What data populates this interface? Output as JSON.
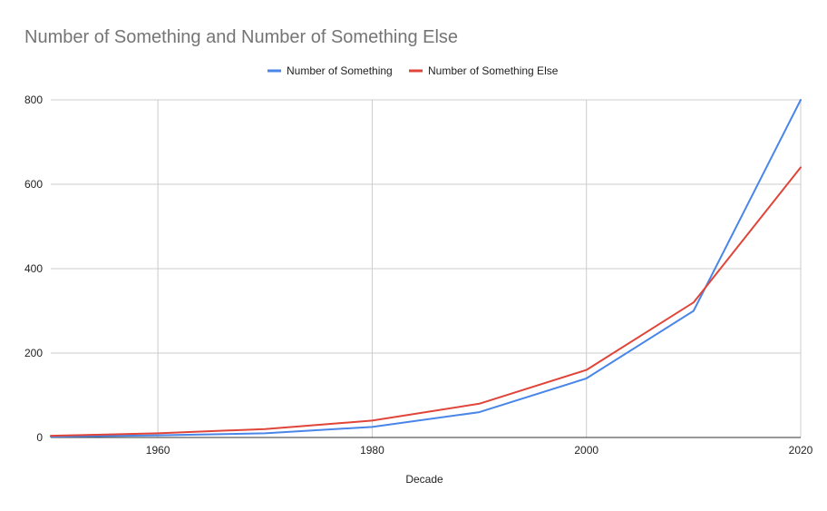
{
  "chart_data": {
    "type": "line",
    "title": "Number of Something and Number of Something Else",
    "xlabel": "Decade",
    "ylabel": "",
    "x": [
      1950,
      1960,
      1970,
      1980,
      1990,
      2000,
      2010,
      2020
    ],
    "series": [
      {
        "name": "Number of Something",
        "color": "#4a86e8",
        "values": [
          2,
          5,
          10,
          25,
          60,
          140,
          300,
          800
        ]
      },
      {
        "name": "Number of Something Else",
        "color": "#e0453a",
        "values": [
          4,
          10,
          20,
          40,
          80,
          160,
          320,
          640
        ]
      }
    ],
    "xlim": [
      1950,
      2020
    ],
    "ylim": [
      0,
      800
    ],
    "x_ticks": [
      "1960",
      "1980",
      "2000",
      "2020"
    ],
    "y_ticks": [
      "0",
      "200",
      "400",
      "600",
      "800"
    ],
    "grid": true,
    "legend_position": "top-center"
  }
}
